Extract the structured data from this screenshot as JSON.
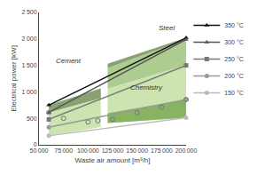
{
  "chart_data": {
    "type": "line",
    "xlabel": "Waste air amount [m³/h]",
    "ylabel": "Electrical power [kW]",
    "xlim": [
      50000,
      200000
    ],
    "ylim": [
      0,
      2500
    ],
    "xticks": [
      {
        "value": 50000,
        "label": "50 000"
      },
      {
        "value": 75000,
        "label": "75 000"
      },
      {
        "value": 100000,
        "label": "100 000"
      },
      {
        "value": 125000,
        "label": "125 000"
      },
      {
        "value": 150000,
        "label": "150 000"
      },
      {
        "value": 175000,
        "label": "175 000"
      },
      {
        "value": 200000,
        "label": "200 000"
      }
    ],
    "yticks": [
      0,
      500,
      {
        "value": 1000,
        "label": "1 000"
      },
      {
        "value": 1500,
        "label": "1 500"
      },
      {
        "value": 2000,
        "label": "2 000"
      },
      {
        "value": 2500,
        "label": "2 500"
      }
    ],
    "grid": false,
    "legend": "right",
    "series": [
      {
        "type": "band",
        "color": "#5a7a3a",
        "x": [
          120000,
          200000
        ],
        "lower": [
          1450,
          1990
        ],
        "upper": [
          1530,
          2020
        ]
      },
      {
        "type": "band",
        "color": "#8ab860",
        "x": [
          120000,
          200000
        ],
        "lower": [
          1060,
          1500
        ],
        "upper": [
          1450,
          1990
        ]
      },
      {
        "type": "band",
        "color": "#b8d890",
        "x": [
          120000,
          200000
        ],
        "lower": [
          595,
          855
        ],
        "upper": [
          1060,
          1500
        ]
      },
      {
        "type": "band",
        "color": "#8ab860",
        "x": [
          120000,
          200000
        ],
        "lower": [
          410,
          510
        ],
        "upper": [
          595,
          855
        ]
      },
      {
        "type": "band",
        "color": "#7aaa50",
        "x": [
          120000,
          200000
        ],
        "lower": [
          410,
          510
        ],
        "upper": [
          595,
          855
        ]
      },
      {
        "type": "band",
        "color": "#5a7a3a",
        "x": [
          60000,
          113000
        ],
        "lower": [
          610,
          875
        ],
        "upper": [
          750,
          1065
        ]
      },
      {
        "type": "band",
        "color": "#b8d890",
        "x": [
          60000,
          113000
        ],
        "lower": [
          170,
          335
        ],
        "upper": [
          610,
          875
        ]
      },
      {
        "type": "line",
        "name": "350 °C",
        "color": "#111111",
        "marker": "triangle-up",
        "x": [
          60000,
          200000
        ],
        "values": [
          750,
          2020
        ]
      },
      {
        "type": "line",
        "name": "300 °C",
        "color": "#555555",
        "marker": "triangle-up",
        "x": [
          60000,
          200000
        ],
        "values": [
          610,
          1990
        ]
      },
      {
        "type": "line",
        "name": "250 °C",
        "color": "#777777",
        "marker": "square",
        "x": [
          60000,
          200000
        ],
        "values": [
          480,
          1500
        ]
      },
      {
        "type": "line",
        "name": "200 °C",
        "color": "#999999",
        "marker": "circle",
        "x": [
          60000,
          200000
        ],
        "values": [
          330,
          855
        ]
      },
      {
        "type": "line",
        "name": "150 °C",
        "color": "#bbbbbb",
        "marker": "circle",
        "x": [
          60000,
          200000
        ],
        "values": [
          170,
          510
        ]
      },
      {
        "type": "scatter",
        "color": "#777777",
        "marker": "circle-open",
        "x": [
          60000,
          75000,
          100000,
          110000
        ],
        "values": [
          610,
          500,
          430,
          455
        ]
      },
      {
        "type": "scatter",
        "color": "#777777",
        "marker": "circle-open",
        "x": [
          125000,
          150000,
          175000,
          200000
        ],
        "values": [
          480,
          610,
          710,
          855
        ]
      }
    ],
    "annotations": [
      "Steel",
      "Cement",
      "Chemistry"
    ]
  }
}
